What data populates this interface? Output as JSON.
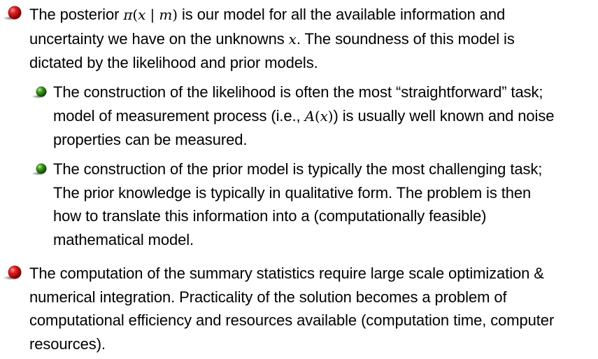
{
  "colors": {
    "bullet_l1": "#c81212",
    "bullet_l2": "#2f8a1a",
    "text": "#000000"
  },
  "items": [
    {
      "level": 1,
      "bullet_icon": "red-ball-icon",
      "line1_a": "The posterior ",
      "math1_pi": "π",
      "math1_open": "(",
      "math1_x": "x",
      "math1_bar": " | ",
      "math1_m": "m",
      "math1_close": ")",
      "line1_b": " is our model for all the available information and",
      "line2_a": "uncertainty we have on the unknowns ",
      "math2_x": "x",
      "line2_b": ". The soundness of this model is",
      "line3": "dictated by the likelihood and prior models."
    },
    {
      "level": 2,
      "bullet_icon": "green-ball-icon",
      "line1": "The construction of the likelihood is often the most “straightforward” task;",
      "line2_a": "model of measurement process (i.e., ",
      "math_A": "A",
      "math_open": "(",
      "math_x": "x",
      "math_close": ")",
      "line2_b": ") is usually well known and noise",
      "line3": "properties can be measured."
    },
    {
      "level": 2,
      "bullet_icon": "green-ball-icon",
      "line1": "The construction of the prior model is typically the most challenging task;",
      "line2": "The prior knowledge is typically in qualitative form. The problem is then",
      "line3": "how to translate this information into a (computationally feasible)",
      "line4": "mathematical model."
    },
    {
      "level": 1,
      "bullet_icon": "red-ball-icon",
      "line1": "The computation of the summary statistics require large scale optimization &",
      "line2": "numerical integration. Practicality of the solution becomes a problem of",
      "line3": "computational efficiency and resources available (computation time, computer",
      "line4": "resources)."
    }
  ]
}
